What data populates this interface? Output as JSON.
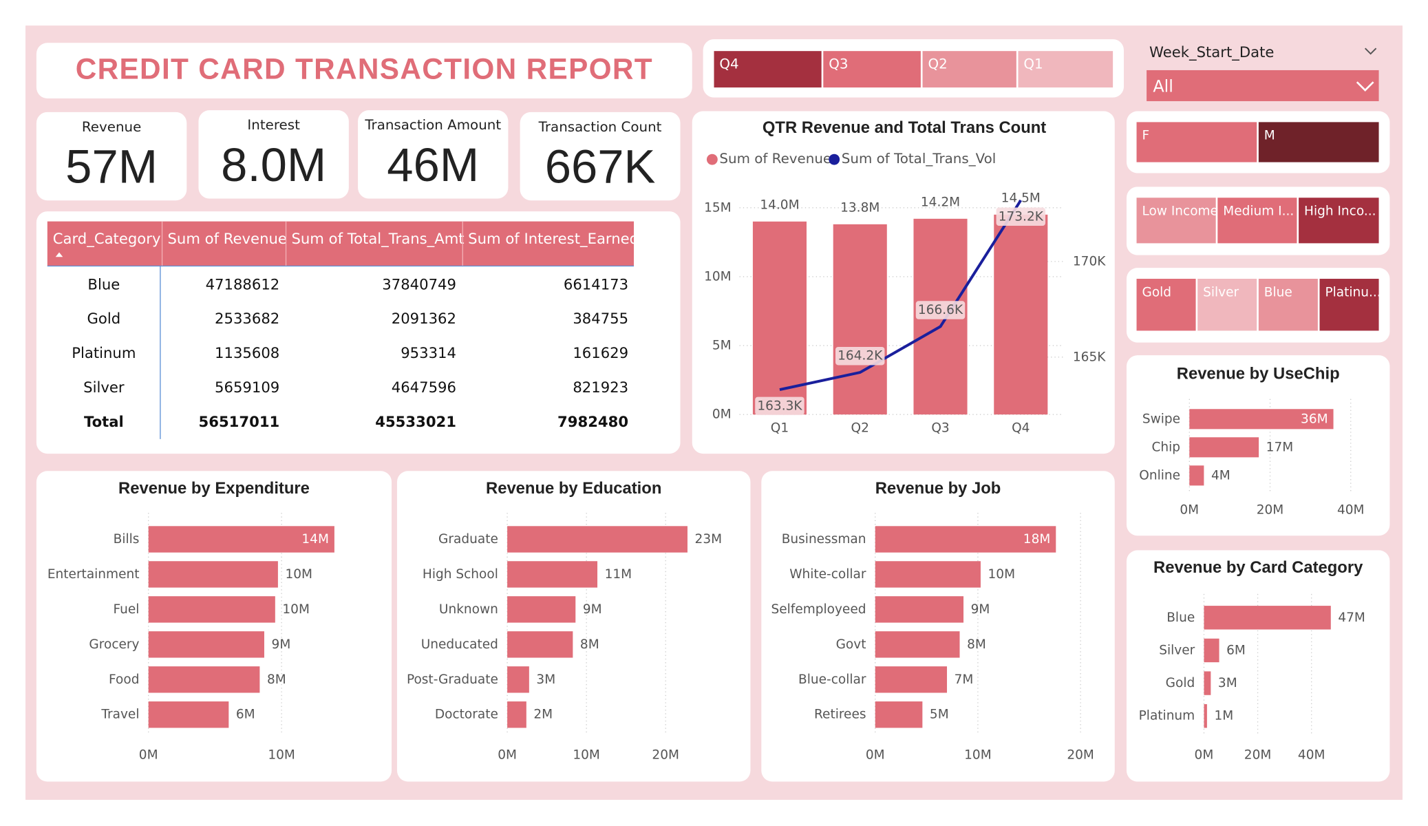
{
  "title": "CREDIT CARD TRANSACTION REPORT",
  "quarter_slicer": [
    "Q4",
    "Q3",
    "Q2",
    "Q1"
  ],
  "date_slicer": {
    "label": "Week_Start_Date",
    "value": "All"
  },
  "gender_slicer": [
    "F",
    "M"
  ],
  "income_slicer": [
    "Low Income",
    "Medium I...",
    "High Inco..."
  ],
  "card_slicer": [
    "Gold",
    "Silver",
    "Blue",
    "Platinu..."
  ],
  "kpis": [
    {
      "label": "Revenue",
      "value": "57M"
    },
    {
      "label": "Interest",
      "value": "8.0M"
    },
    {
      "label": "Transaction Amount",
      "value": "46M"
    },
    {
      "label": "Transaction Count",
      "value": "667K"
    }
  ],
  "table": {
    "headers": [
      "Card_Category",
      "Sum of Revenue",
      "Sum of Total_Trans_Amt",
      "Sum of Interest_Earned"
    ],
    "rows": [
      [
        "Blue",
        47188612,
        37840749,
        6614173
      ],
      [
        "Gold",
        2533682,
        2091362,
        384755
      ],
      [
        "Platinum",
        1135608,
        953314,
        161629
      ],
      [
        "Silver",
        5659109,
        4647596,
        821923
      ]
    ],
    "total": [
      "Total",
      56517011,
      45533021,
      7982480
    ]
  },
  "chart_data": [
    {
      "type": "combo",
      "title": "QTR Revenue and Total Trans Count",
      "categories": [
        "Q1",
        "Q2",
        "Q3",
        "Q4"
      ],
      "series": [
        {
          "name": "Sum of Revenue",
          "type": "bar",
          "color": "#e06d78",
          "values": [
            14000000,
            13800000,
            14200000,
            14500000
          ],
          "value_labels": [
            "14.0M",
            "13.8M",
            "14.2M",
            "14.5M"
          ]
        },
        {
          "name": "Sum of Total_Trans_Vol",
          "type": "line",
          "axis": "y2",
          "color": "#1a1f9c",
          "values": [
            163300,
            164200,
            166600,
            173200
          ],
          "value_labels": [
            "163.3K",
            "164.2K",
            "166.6K",
            "173.2K"
          ]
        }
      ],
      "ylim": [
        0,
        15860000
      ],
      "yticks": [
        {
          "value": 0,
          "label": "0M"
        },
        {
          "value": 5000000,
          "label": "5M"
        },
        {
          "value": 10000000,
          "label": "10M"
        },
        {
          "value": 15000000,
          "label": "15M"
        }
      ],
      "y2lim": [
        162000,
        173430
      ],
      "y2ticks": [
        {
          "value": 165000,
          "label": "165K"
        },
        {
          "value": 170000,
          "label": "170K"
        }
      ],
      "grid": true
    },
    {
      "type": "hbar",
      "title": "Revenue by Expenditure",
      "categories": [
        "Bills",
        "Entertainment",
        "Fuel",
        "Grocery",
        "Food",
        "Travel"
      ],
      "values": [
        13970000,
        9730000,
        9520000,
        8700000,
        8360000,
        6030000
      ],
      "value_labels": [
        "14M",
        "10M",
        "10M",
        "9M",
        "8M",
        "6M"
      ],
      "color": "#e06d78",
      "xlim": [
        0,
        16900000
      ],
      "xticks": [
        {
          "value": 0,
          "label": "0M"
        },
        {
          "value": 10000000,
          "label": "10M"
        }
      ],
      "grid": true
    },
    {
      "type": "hbar",
      "title": "Revenue by Education",
      "categories": [
        "Graduate",
        "High School",
        "Unknown",
        "Uneducated",
        "Post-Graduate",
        "Doctorate"
      ],
      "values": [
        22760000,
        11380000,
        8620000,
        8280000,
        2760000,
        2410000
      ],
      "value_labels": [
        "23M",
        "11M",
        "9M",
        "8M",
        "3M",
        "2M"
      ],
      "color": "#e06d78",
      "xlim": [
        0,
        29100000
      ],
      "xticks": [
        {
          "value": 0,
          "label": "0M"
        },
        {
          "value": 10000000,
          "label": "10M"
        },
        {
          "value": 20000000,
          "label": "20M"
        }
      ],
      "grid": true
    },
    {
      "type": "hbar",
      "title": "Revenue by Job",
      "categories": [
        "Businessman",
        "White-collar",
        "Selfemployeed",
        "Govt",
        "Blue-collar",
        "Retirees"
      ],
      "values": [
        17600000,
        10270000,
        8600000,
        8230000,
        6990000,
        4600000
      ],
      "value_labels": [
        "18M",
        "10M",
        "9M",
        "8M",
        "7M",
        "5M"
      ],
      "color": "#e06d78",
      "xlim": [
        0,
        21200000
      ],
      "xticks": [
        {
          "value": 0,
          "label": "0M"
        },
        {
          "value": 10000000,
          "label": "10M"
        },
        {
          "value": 20000000,
          "label": "20M"
        }
      ],
      "grid": true
    },
    {
      "type": "hbar",
      "title": "Revenue by UseChip",
      "categories": [
        "Swipe",
        "Chip",
        "Online"
      ],
      "values": [
        35700000,
        17200000,
        3600000
      ],
      "value_labels": [
        "36M",
        "17M",
        "4M"
      ],
      "color": "#e06d78",
      "xlim": [
        0,
        43800000
      ],
      "xticks": [
        {
          "value": 0,
          "label": "0M"
        },
        {
          "value": 20000000,
          "label": "20M"
        },
        {
          "value": 40000000,
          "label": "40M"
        }
      ],
      "grid": true
    },
    {
      "type": "hbar",
      "title": "Revenue by Card Category",
      "categories": [
        "Blue",
        "Silver",
        "Gold",
        "Platinum"
      ],
      "values": [
        47188612,
        5659109,
        2533682,
        1135608
      ],
      "value_labels": [
        "47M",
        "6M",
        "3M",
        "1M"
      ],
      "color": "#e06d78",
      "xlim": [
        0,
        60300000
      ],
      "xticks": [
        {
          "value": 0,
          "label": "0M"
        },
        {
          "value": 20000000,
          "label": "20M"
        },
        {
          "value": 40000000,
          "label": "40M"
        }
      ],
      "grid": true
    }
  ]
}
